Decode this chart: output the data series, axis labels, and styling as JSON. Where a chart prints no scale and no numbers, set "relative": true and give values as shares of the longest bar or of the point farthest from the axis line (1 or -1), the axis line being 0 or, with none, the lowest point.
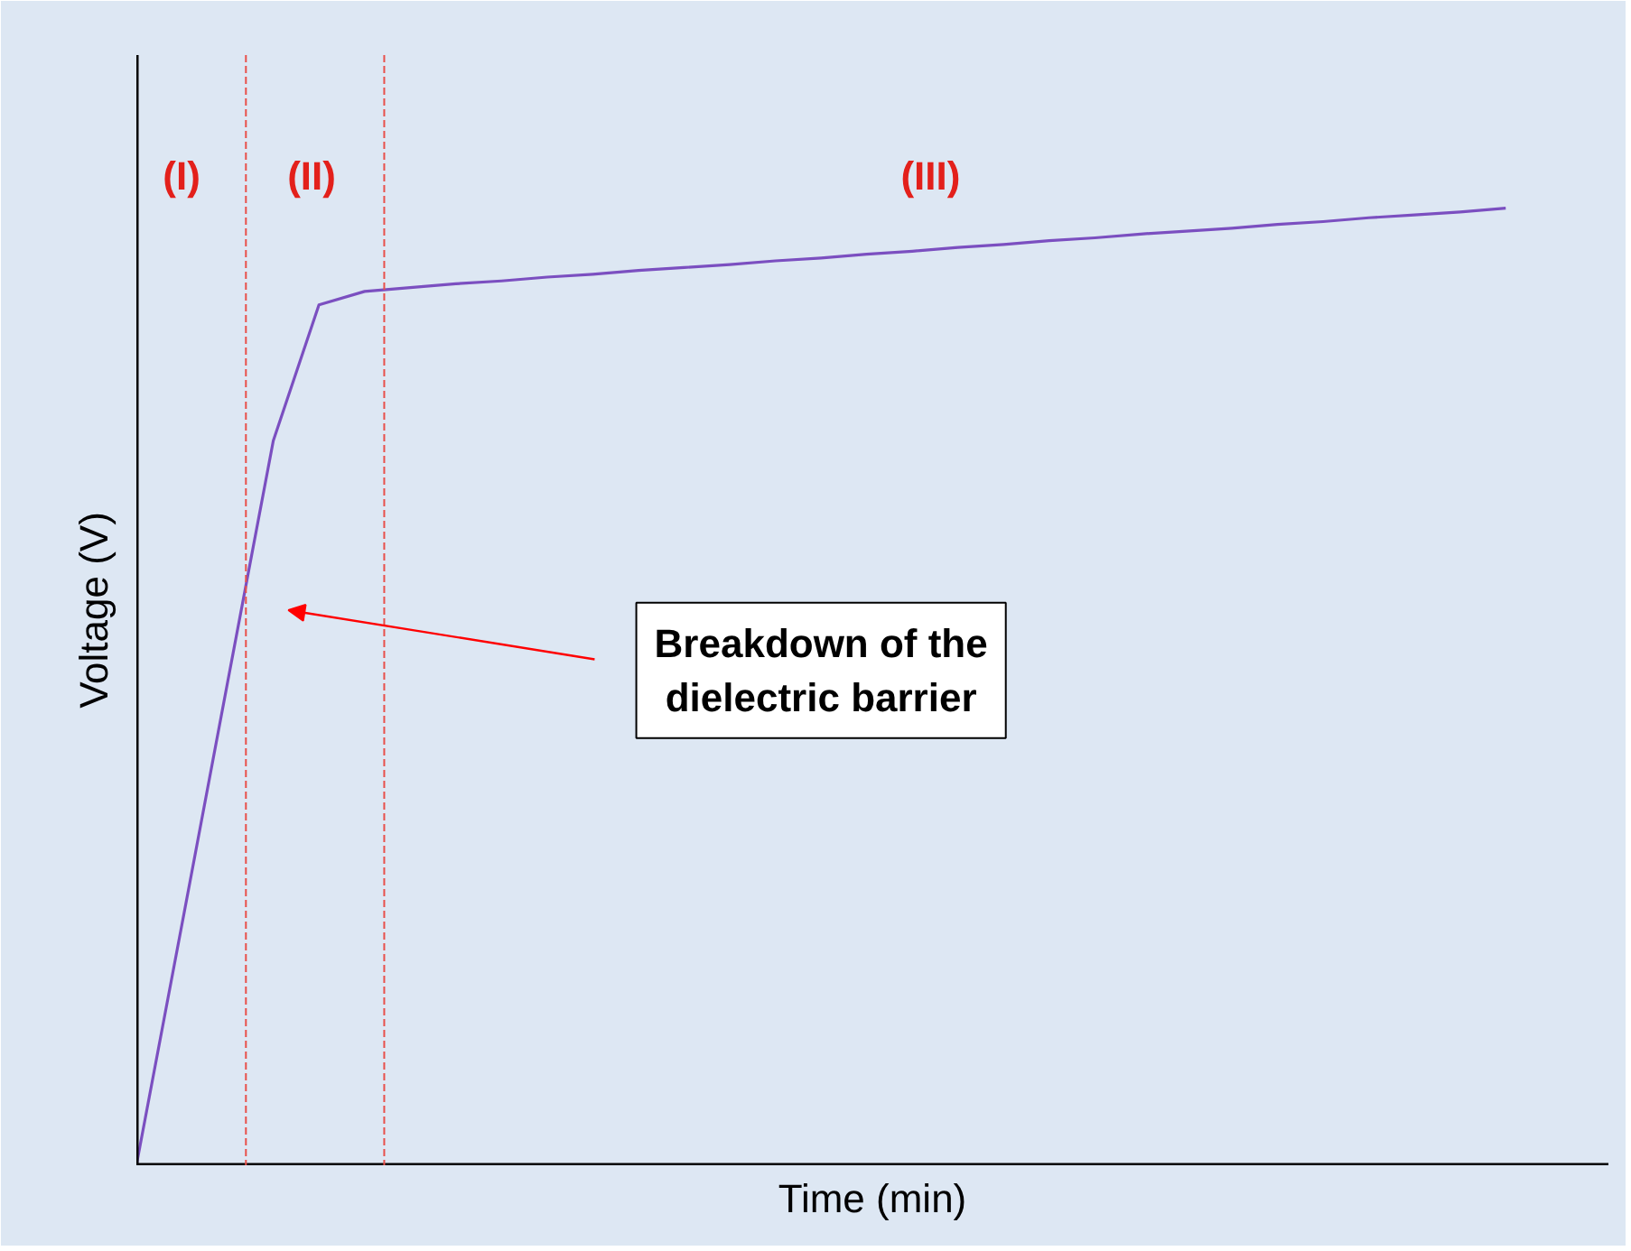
{
  "chart_data": {
    "type": "line",
    "relative": true,
    "xlabel": "Time (min)",
    "ylabel": "Voltage (V)",
    "tick_labels": false,
    "grid": false,
    "marker": "none",
    "line_style": "solid",
    "categories": [
      null,
      null,
      null,
      null,
      null,
      null,
      null,
      null,
      null,
      null,
      null,
      null,
      null,
      null,
      null,
      null,
      null,
      null,
      null,
      null,
      null,
      null,
      null,
      null,
      null,
      null,
      null,
      null,
      null,
      null,
      null
    ],
    "series": [
      {
        "color": "#7b4fc0",
        "values": [
          0,
          0.252,
          0.505,
          0.757,
          0.899,
          0.913,
          0.917,
          0.921,
          0.924,
          0.928,
          0.931,
          0.935,
          0.938,
          0.941,
          0.945,
          0.948,
          0.952,
          0.955,
          0.959,
          0.962,
          0.966,
          0.969,
          0.973,
          0.976,
          0.979,
          0.983,
          0.986,
          0.99,
          0.993,
          0.996,
          1.0
        ]
      }
    ],
    "annotations": [
      "(I)",
      "(II)",
      "(III)",
      "Breakdown of the dielectric barrier"
    ]
  }
}
